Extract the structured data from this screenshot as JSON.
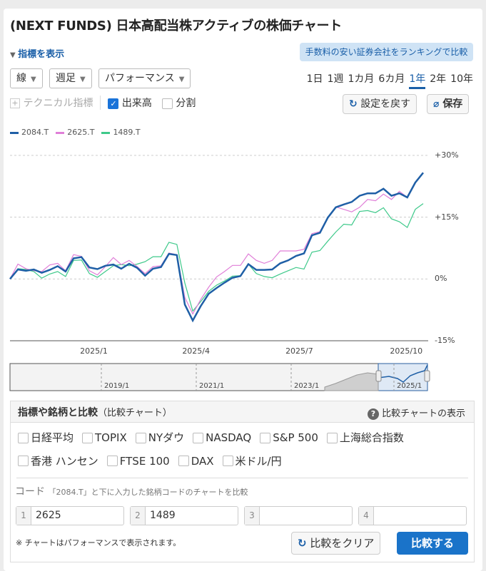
{
  "title": "(NEXT FUNDS) 日本高配当株アクティブの株価チャート",
  "indicator_toggle": "指標を表示",
  "promo_link": "手数料の安い証券会社をランキングで比較",
  "selects": {
    "chart_type": "線",
    "interval": "週足",
    "mode": "パフォーマンス"
  },
  "periods": [
    "1日",
    "1週",
    "1カ月",
    "6カ月",
    "1年",
    "2年",
    "10年"
  ],
  "active_period": "1年",
  "technical": "テクニカル指標",
  "volume": {
    "label": "出来高",
    "checked": true
  },
  "split": {
    "label": "分割",
    "checked": false
  },
  "reset_button": "設定を戻す",
  "save_button": "保存",
  "colors": {
    "accent": "#1a5fa8",
    "s2084": "#1f5fa6",
    "s2625": "#e07fd8",
    "s1489": "#3ec98a"
  },
  "chart_data": {
    "type": "line",
    "y_unit": "%",
    "ylim": [
      -15,
      30
    ],
    "y_ticks": [
      "+30%",
      "+15%",
      "0%",
      "-15%"
    ],
    "y_tick_values": [
      30,
      15,
      0,
      -15
    ],
    "x_ticks": [
      "2025/1",
      "2025/4",
      "2025/7",
      "2025/10"
    ],
    "x_tick_dates": [
      "2025-01-01",
      "2025-04-01",
      "2025-07-01",
      "2025-10-01"
    ],
    "grid": true,
    "legend_position": "top-left",
    "x": [
      "2024-10-25",
      "2024-11-01",
      "2024-11-08",
      "2024-11-15",
      "2024-11-22",
      "2024-11-29",
      "2024-12-06",
      "2024-12-13",
      "2024-12-20",
      "2024-12-27",
      "2025-01-03",
      "2025-01-10",
      "2025-01-17",
      "2025-01-24",
      "2025-01-31",
      "2025-02-07",
      "2025-02-14",
      "2025-02-21",
      "2025-02-28",
      "2025-03-07",
      "2025-03-14",
      "2025-03-21",
      "2025-03-28",
      "2025-04-04",
      "2025-04-11",
      "2025-04-18",
      "2025-04-25",
      "2025-05-02",
      "2025-05-09",
      "2025-05-16",
      "2025-05-23",
      "2025-05-30",
      "2025-06-06",
      "2025-06-13",
      "2025-06-20",
      "2025-06-27",
      "2025-07-04",
      "2025-07-11",
      "2025-07-18",
      "2025-07-25",
      "2025-08-01",
      "2025-08-08",
      "2025-08-15",
      "2025-08-22",
      "2025-08-29",
      "2025-09-05",
      "2025-09-12",
      "2025-09-19",
      "2025-09-26",
      "2025-10-03",
      "2025-10-10",
      "2025-10-17",
      "2025-10-24"
    ],
    "series": [
      {
        "name": "2084.T",
        "values": [
          0,
          2.3,
          2.0,
          2.3,
          1.5,
          2.2,
          3.1,
          1.8,
          5.0,
          5.3,
          2.8,
          2.4,
          3.2,
          3.5,
          2.5,
          3.7,
          2.7,
          0.8,
          2.5,
          2.9,
          6.1,
          5.8,
          -6.2,
          -10.1,
          -6.6,
          -3.6,
          -2.2,
          -0.9,
          0.3,
          0.7,
          3.6,
          2.2,
          2.2,
          2.3,
          3.8,
          4.5,
          5.6,
          6.2,
          10.6,
          11.2,
          14.9,
          17.4,
          18.1,
          18.7,
          20.2,
          20.8,
          20.8,
          21.9,
          20.2,
          20.8,
          19.8,
          23.4,
          25.8
        ]
      },
      {
        "name": "2625.T",
        "values": [
          0,
          3.6,
          2.5,
          2.0,
          1.8,
          3.4,
          3.8,
          2.0,
          5.9,
          5.5,
          2.0,
          1.0,
          3.0,
          5.2,
          3.5,
          4.5,
          3.0,
          1.3,
          3.0,
          3.2,
          6.3,
          5.9,
          -4.5,
          -8.5,
          -5.0,
          -2.0,
          0.5,
          1.8,
          3.3,
          3.3,
          6.1,
          4.5,
          3.8,
          4.5,
          6.8,
          6.8,
          6.8,
          7.2,
          11.0,
          11.5,
          15.0,
          17.5,
          16.9,
          16.3,
          17.4,
          19.3,
          19.0,
          20.6,
          19.3,
          21.3,
          19.8,
          23.4,
          25.8
        ]
      },
      {
        "name": "1489.T",
        "values": [
          0,
          2.5,
          2.3,
          1.8,
          0.2,
          1.2,
          1.8,
          0.6,
          4.5,
          4.6,
          1.3,
          0.4,
          1.8,
          3.2,
          3.5,
          3.2,
          3.6,
          4.2,
          5.4,
          5.4,
          8.9,
          8.4,
          -1.0,
          -7.8,
          -5.5,
          -3.0,
          -1.5,
          -0.5,
          0.7,
          0.8,
          3.6,
          1.3,
          0.6,
          0.3,
          1.2,
          2.0,
          2.8,
          2.4,
          6.5,
          6.9,
          9.2,
          11.4,
          13.3,
          13.1,
          16.4,
          16.6,
          16.1,
          17.3,
          14.6,
          13.9,
          12.5,
          16.9,
          18.3
        ]
      }
    ]
  },
  "navigator": {
    "labels": [
      "2019/1",
      "2021/1",
      "2023/1",
      "2025/1"
    ]
  },
  "compare": {
    "title": "指標や銘柄と比較",
    "subtitle": "（比較チャート）",
    "help": "比較チャートの表示",
    "indices": [
      {
        "label": "日経平均",
        "checked": false
      },
      {
        "label": "TOPIX",
        "checked": false
      },
      {
        "label": "NYダウ",
        "checked": false
      },
      {
        "label": "NASDAQ",
        "checked": false
      },
      {
        "label": "S&P 500",
        "checked": false
      },
      {
        "label": "上海総合指数",
        "checked": false
      },
      {
        "label": "香港 ハンセン",
        "checked": false
      },
      {
        "label": "FTSE 100",
        "checked": false
      },
      {
        "label": "DAX",
        "checked": false
      },
      {
        "label": "米ドル/円",
        "checked": false
      }
    ],
    "code_label": "コード",
    "code_hint": "「2084.T」と下に入力した銘柄コードのチャートを比較",
    "codes": [
      {
        "n": "1",
        "value": "2625"
      },
      {
        "n": "2",
        "value": "1489"
      },
      {
        "n": "3",
        "value": ""
      },
      {
        "n": "4",
        "value": ""
      }
    ],
    "note": "※ チャートはパフォーマンスで表示されます。",
    "clear_button": "比較をクリア",
    "compare_button": "比較する"
  }
}
